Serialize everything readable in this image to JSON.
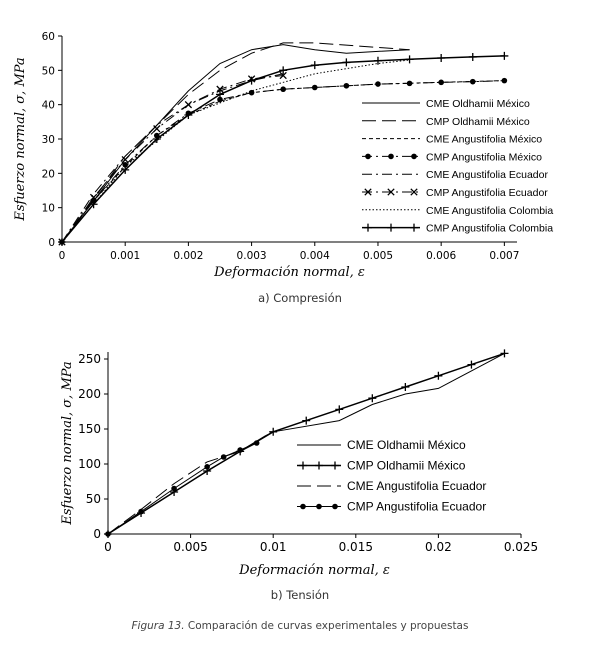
{
  "chart_data": [
    {
      "type": "line",
      "caption": "a) Compresión",
      "xlabel": "Deformación normal, ε",
      "ylabel": "Esfuerzo normal, σ, MPa",
      "xlim": [
        0,
        0.0072
      ],
      "ylim": [
        0,
        60
      ],
      "xticks": [
        0,
        0.001,
        0.002,
        0.003,
        0.004,
        0.005,
        0.006,
        0.007
      ],
      "xtick_labels": [
        "0",
        "0.001",
        "0.002",
        "0.003",
        "0.004",
        "0.005",
        "0.006",
        "0.007"
      ],
      "yticks": [
        0,
        10,
        20,
        30,
        40,
        50,
        60
      ],
      "ytick_labels": [
        "0",
        "10",
        "20",
        "30",
        "40",
        "50",
        "60"
      ],
      "legend_position": "bottom-right",
      "series": [
        {
          "name": "CME Oldhamii México",
          "style": "solid",
          "marker": "none",
          "x": [
            0,
            0.001,
            0.002,
            0.0025,
            0.003,
            0.0035,
            0.004,
            0.0045,
            0.005,
            0.0055
          ],
          "y": [
            0,
            24,
            44,
            52,
            56,
            57.5,
            56,
            55,
            55.5,
            56
          ]
        },
        {
          "name": "CMP Oldhamii México",
          "style": "longdash",
          "marker": "none",
          "x": [
            0,
            0.001,
            0.002,
            0.0025,
            0.003,
            0.0035,
            0.004,
            0.0055
          ],
          "y": [
            0,
            25,
            43,
            50,
            55,
            58,
            58,
            56
          ]
        },
        {
          "name": "CME Angustifolia México",
          "style": "shortdash",
          "marker": "none",
          "x": [
            0,
            0.0005,
            0.001,
            0.0015,
            0.002,
            0.0025,
            0.003,
            0.0035,
            0.004,
            0.005,
            0.006,
            0.007
          ],
          "y": [
            0,
            12,
            22,
            31,
            37,
            41,
            43.5,
            44.5,
            45,
            46,
            46.5,
            47
          ]
        },
        {
          "name": "CMP Angustifolia México",
          "style": "dashdot",
          "marker": "dot",
          "x": [
            0,
            0.0005,
            0.001,
            0.0015,
            0.002,
            0.0025,
            0.003,
            0.0035,
            0.004,
            0.0045,
            0.005,
            0.0055,
            0.006,
            0.0065,
            0.007
          ],
          "y": [
            0,
            12,
            22.5,
            31,
            37.5,
            41.5,
            43.5,
            44.5,
            45,
            45.5,
            46,
            46.2,
            46.5,
            46.7,
            47
          ]
        },
        {
          "name": "CME Angustifolia Ecuador",
          "style": "dashdot",
          "marker": "none",
          "x": [
            0,
            0.0005,
            0.001,
            0.0015,
            0.002,
            0.0025,
            0.003,
            0.0035
          ],
          "y": [
            0,
            14,
            25,
            34,
            40,
            44,
            47,
            49
          ]
        },
        {
          "name": "CMP Angustifolia Ecuador",
          "style": "dashdot",
          "marker": "x",
          "x": [
            0,
            0.0005,
            0.001,
            0.0015,
            0.002,
            0.0025,
            0.003,
            0.0035
          ],
          "y": [
            0,
            13,
            24,
            33,
            40,
            44.5,
            47.5,
            48.5
          ]
        },
        {
          "name": "CME Angustifolia Colombia",
          "style": "dotted",
          "marker": "none",
          "x": [
            0,
            0.001,
            0.002,
            0.003,
            0.004,
            0.005,
            0.0055
          ],
          "y": [
            0,
            22,
            37,
            44,
            49,
            52,
            53
          ]
        },
        {
          "name": "CMP Angustifolia Colombia",
          "style": "solid",
          "marker": "plus",
          "x": [
            0,
            0.0005,
            0.001,
            0.0015,
            0.002,
            0.0025,
            0.003,
            0.0035,
            0.004,
            0.0045,
            0.005,
            0.0055,
            0.006,
            0.0065,
            0.007
          ],
          "y": [
            0,
            11,
            21,
            30,
            37,
            43,
            47,
            50,
            51.5,
            52.3,
            52.8,
            53.2,
            53.6,
            53.9,
            54.2
          ]
        }
      ]
    },
    {
      "type": "line",
      "caption": "b) Tensión",
      "xlabel": "Deformación normal, ε",
      "ylabel": "Esfuerzo normal, σ, MPa",
      "xlim": [
        0,
        0.025
      ],
      "ylim": [
        0,
        260
      ],
      "xticks": [
        0,
        0.005,
        0.01,
        0.015,
        0.02,
        0.025
      ],
      "xtick_labels": [
        "0",
        "0.005",
        "0.01",
        "0.015",
        "0.02",
        "0.025"
      ],
      "yticks": [
        0,
        50,
        100,
        150,
        200,
        250
      ],
      "ytick_labels": [
        "0",
        "50",
        "100",
        "150",
        "200",
        "250"
      ],
      "legend_position": "bottom-right",
      "series": [
        {
          "name": "CME Oldhamii México",
          "style": "solid",
          "marker": "none",
          "x": [
            0,
            0.005,
            0.0095,
            0.01,
            0.014,
            0.016,
            0.018,
            0.02,
            0.024
          ],
          "y": [
            0,
            75,
            140,
            146,
            162,
            185,
            200,
            208,
            258
          ]
        },
        {
          "name": "CMP Oldhamii México",
          "style": "solid",
          "marker": "plus",
          "x": [
            0,
            0.002,
            0.004,
            0.006,
            0.008,
            0.01,
            0.012,
            0.014,
            0.016,
            0.018,
            0.02,
            0.022,
            0.024
          ],
          "y": [
            0,
            30,
            60,
            90,
            118,
            146,
            162,
            178,
            194,
            210,
            226,
            242,
            258
          ]
        },
        {
          "name": "CME Angustifolia Ecuador",
          "style": "longdash",
          "marker": "none",
          "x": [
            0,
            0.002,
            0.004,
            0.006,
            0.008,
            0.009
          ],
          "y": [
            0,
            35,
            72,
            103,
            118,
            130
          ]
        },
        {
          "name": "CMP Angustifolia Ecuador",
          "style": "solid",
          "marker": "dot",
          "x": [
            0,
            0.002,
            0.004,
            0.006,
            0.007,
            0.008,
            0.009
          ],
          "y": [
            0,
            32,
            65,
            96,
            110,
            120,
            130
          ]
        }
      ]
    }
  ],
  "figure": {
    "caption_label": "Figura 13.",
    "caption_text": " Comparación de curvas experimentales y propuestas"
  }
}
